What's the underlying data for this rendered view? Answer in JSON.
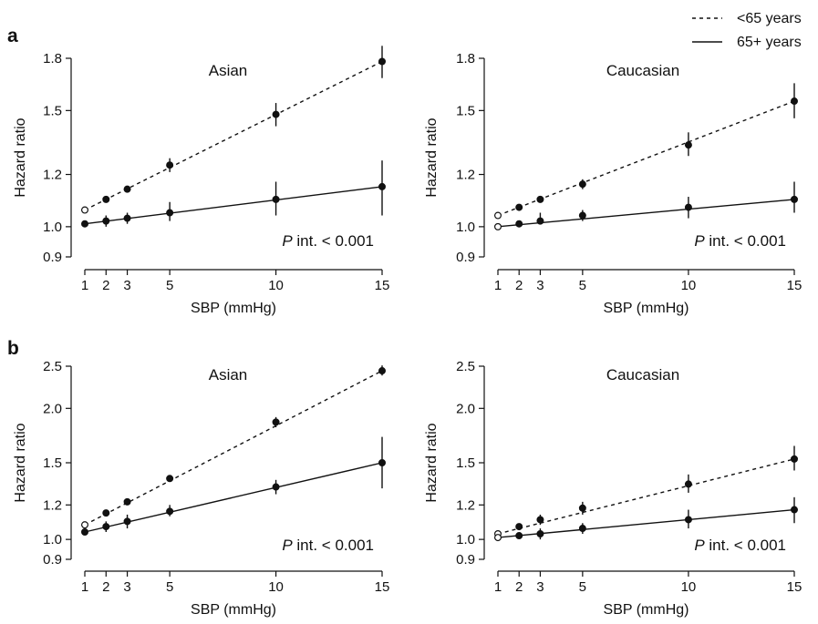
{
  "legend": {
    "items": [
      {
        "label": "<65 years",
        "style": "dashed"
      },
      {
        "label": "65+ years",
        "style": "solid"
      }
    ]
  },
  "rows": [
    {
      "letter": "a"
    },
    {
      "letter": "b"
    }
  ],
  "chart_data": [
    {
      "type": "line",
      "panel": "a",
      "title": "Asian",
      "xlabel": "SBP (mmHg)",
      "ylabel": "Hazard ratio",
      "x": [
        1,
        2,
        3,
        5,
        10,
        15
      ],
      "xticks": [
        1,
        2,
        3,
        5,
        10,
        15
      ],
      "xlim": [
        1,
        15
      ],
      "yscale": "log",
      "yticks": [
        "0.9",
        "1.0",
        "1.2",
        "1.5",
        "1.8"
      ],
      "ylim": [
        0.9,
        1.8
      ],
      "annotation": {
        "p": "P",
        "text": " int. < 0.001"
      },
      "series": [
        {
          "name": "<65 years",
          "style": "dashed",
          "y": [
            1.06,
            1.1,
            1.14,
            1.24,
            1.48,
            1.78
          ],
          "ci_low": [
            null,
            1.09,
            1.13,
            1.21,
            1.42,
            1.68
          ],
          "ci_high": [
            null,
            1.11,
            1.15,
            1.27,
            1.54,
            1.88
          ],
          "hollow_first": true
        },
        {
          "name": "65+ years",
          "style": "solid",
          "y": [
            1.01,
            1.02,
            1.03,
            1.05,
            1.1,
            1.15
          ],
          "ci_low": [
            null,
            1.0,
            1.01,
            1.02,
            1.04,
            1.04
          ],
          "ci_high": [
            null,
            1.04,
            1.05,
            1.09,
            1.17,
            1.26
          ],
          "hollow_first": false
        }
      ]
    },
    {
      "type": "line",
      "panel": "a",
      "title": "Caucasian",
      "xlabel": "SBP (mmHg)",
      "ylabel": "Hazard ratio",
      "x": [
        1,
        2,
        3,
        5,
        10,
        15
      ],
      "xticks": [
        1,
        2,
        3,
        5,
        10,
        15
      ],
      "xlim": [
        1,
        15
      ],
      "yscale": "log",
      "yticks": [
        "0.9",
        "1.0",
        "1.2",
        "1.5",
        "1.8"
      ],
      "ylim": [
        0.9,
        1.8
      ],
      "annotation": {
        "p": "P",
        "text": " int. < 0.001"
      },
      "series": [
        {
          "name": "<65 years",
          "style": "dashed",
          "y": [
            1.04,
            1.07,
            1.1,
            1.16,
            1.33,
            1.55
          ],
          "ci_low": [
            null,
            1.06,
            1.09,
            1.14,
            1.28,
            1.46
          ],
          "ci_high": [
            null,
            1.08,
            1.11,
            1.18,
            1.39,
            1.65
          ],
          "hollow_first": true
        },
        {
          "name": "65+ years",
          "style": "solid",
          "y": [
            1.0,
            1.01,
            1.02,
            1.04,
            1.07,
            1.1
          ],
          "ci_low": [
            null,
            1.0,
            1.01,
            1.02,
            1.03,
            1.05
          ],
          "ci_high": [
            null,
            1.02,
            1.05,
            1.06,
            1.11,
            1.17
          ],
          "hollow_first": true
        }
      ]
    },
    {
      "type": "line",
      "panel": "b",
      "title": "Asian",
      "xlabel": "SBP (mmHg)",
      "ylabel": "Hazard ratio",
      "x": [
        1,
        2,
        3,
        5,
        10,
        15
      ],
      "xticks": [
        1,
        2,
        3,
        5,
        10,
        15
      ],
      "xlim": [
        1,
        15
      ],
      "yscale": "log",
      "yticks": [
        "0.9",
        "1.0",
        "1.2",
        "1.5",
        "2.0",
        "2.5"
      ],
      "ylim": [
        0.9,
        2.5
      ],
      "annotation": {
        "p": "P",
        "text": " int. < 0.001"
      },
      "series": [
        {
          "name": "<65 years",
          "style": "dashed",
          "y": [
            1.08,
            1.15,
            1.22,
            1.38,
            1.86,
            2.44
          ],
          "ci_low": [
            null,
            1.14,
            1.21,
            1.36,
            1.81,
            2.38
          ],
          "ci_high": [
            null,
            1.16,
            1.23,
            1.4,
            1.91,
            2.51
          ],
          "hollow_first": true
        },
        {
          "name": "65+ years",
          "style": "solid",
          "y": [
            1.04,
            1.07,
            1.1,
            1.16,
            1.32,
            1.5
          ],
          "ci_low": [
            null,
            1.04,
            1.06,
            1.13,
            1.27,
            1.31
          ],
          "ci_high": [
            null,
            1.1,
            1.14,
            1.2,
            1.37,
            1.72
          ],
          "hollow_first": false
        }
      ]
    },
    {
      "type": "line",
      "panel": "b",
      "title": "Caucasian",
      "xlabel": "SBP (mmHg)",
      "ylabel": "Hazard ratio",
      "x": [
        1,
        2,
        3,
        5,
        10,
        15
      ],
      "xticks": [
        1,
        2,
        3,
        5,
        10,
        15
      ],
      "xlim": [
        1,
        15
      ],
      "yscale": "log",
      "yticks": [
        "0.9",
        "1.0",
        "1.2",
        "1.5",
        "2.0",
        "2.5"
      ],
      "ylim": [
        0.9,
        2.5
      ],
      "annotation": {
        "p": "P",
        "text": " int. < 0.001"
      },
      "series": [
        {
          "name": "<65 years",
          "style": "dashed",
          "y": [
            1.03,
            1.07,
            1.11,
            1.18,
            1.34,
            1.53
          ],
          "ci_low": [
            null,
            1.06,
            1.08,
            1.14,
            1.28,
            1.44
          ],
          "ci_high": [
            null,
            1.08,
            1.14,
            1.22,
            1.41,
            1.64
          ],
          "hollow_first": true
        },
        {
          "name": "65+ years",
          "style": "solid",
          "y": [
            1.01,
            1.02,
            1.03,
            1.06,
            1.11,
            1.17
          ],
          "ci_low": [
            null,
            1.01,
            1.0,
            1.03,
            1.06,
            1.09
          ],
          "ci_high": [
            null,
            1.03,
            1.06,
            1.09,
            1.17,
            1.25
          ],
          "hollow_first": true
        }
      ]
    }
  ]
}
